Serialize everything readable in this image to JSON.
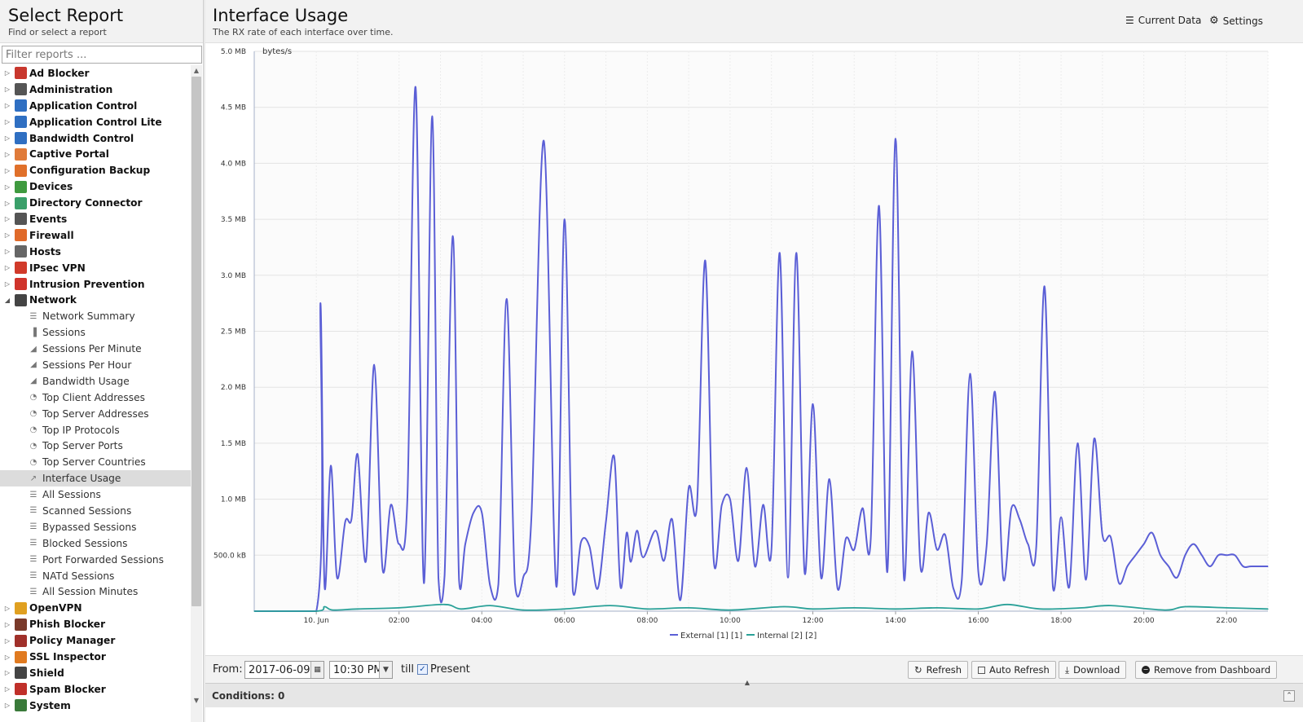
{
  "sidebar": {
    "title": "Select Report",
    "subtitle": "Find or select a report",
    "filter_placeholder": "Filter reports ...",
    "items": [
      {
        "label": "Ad Blocker",
        "icon": "ad-blocker-icon",
        "color": "#c8372d",
        "type": "category"
      },
      {
        "label": "Administration",
        "icon": "administration-icon",
        "color": "#555555",
        "type": "category"
      },
      {
        "label": "Application Control",
        "icon": "application-control-icon",
        "color": "#2f6fc2",
        "type": "category"
      },
      {
        "label": "Application Control Lite",
        "icon": "application-control-lite-icon",
        "color": "#2f6fc2",
        "type": "category"
      },
      {
        "label": "Bandwidth Control",
        "icon": "bandwidth-control-icon",
        "color": "#2f6fc2",
        "type": "category"
      },
      {
        "label": "Captive Portal",
        "icon": "captive-portal-icon",
        "color": "#e07b3a",
        "type": "category"
      },
      {
        "label": "Configuration Backup",
        "icon": "configuration-backup-icon",
        "color": "#e0702a",
        "type": "category"
      },
      {
        "label": "Devices",
        "icon": "devices-icon",
        "color": "#3f9a3f",
        "type": "category"
      },
      {
        "label": "Directory Connector",
        "icon": "directory-connector-icon",
        "color": "#3aa06a",
        "type": "category"
      },
      {
        "label": "Events",
        "icon": "events-icon",
        "color": "#555555",
        "type": "category"
      },
      {
        "label": "Firewall",
        "icon": "firewall-icon",
        "color": "#e06a2a",
        "type": "category"
      },
      {
        "label": "Hosts",
        "icon": "hosts-icon",
        "color": "#666666",
        "type": "category"
      },
      {
        "label": "IPsec VPN",
        "icon": "ipsec-vpn-icon",
        "color": "#d13a2a",
        "type": "category"
      },
      {
        "label": "Intrusion Prevention",
        "icon": "intrusion-prevention-icon",
        "color": "#d0342c",
        "type": "category"
      },
      {
        "label": "Network",
        "icon": "network-icon",
        "color": "#444444",
        "type": "category",
        "expanded": true
      },
      {
        "label": "Network Summary",
        "icon": "list-icon",
        "type": "report"
      },
      {
        "label": "Sessions",
        "icon": "bar-chart-icon",
        "type": "report"
      },
      {
        "label": "Sessions Per Minute",
        "icon": "area-chart-icon",
        "type": "report"
      },
      {
        "label": "Sessions Per Hour",
        "icon": "area-chart-icon",
        "type": "report"
      },
      {
        "label": "Bandwidth Usage",
        "icon": "area-chart-icon",
        "type": "report"
      },
      {
        "label": "Top Client Addresses",
        "icon": "pie-chart-icon",
        "type": "report"
      },
      {
        "label": "Top Server Addresses",
        "icon": "pie-chart-icon",
        "type": "report"
      },
      {
        "label": "Top IP Protocols",
        "icon": "pie-chart-icon",
        "type": "report"
      },
      {
        "label": "Top Server Ports",
        "icon": "pie-chart-icon",
        "type": "report"
      },
      {
        "label": "Top Server Countries",
        "icon": "pie-chart-icon",
        "type": "report"
      },
      {
        "label": "Interface Usage",
        "icon": "line-chart-icon",
        "type": "report",
        "selected": true
      },
      {
        "label": "All Sessions",
        "icon": "list-icon",
        "type": "report"
      },
      {
        "label": "Scanned Sessions",
        "icon": "list-icon",
        "type": "report"
      },
      {
        "label": "Bypassed Sessions",
        "icon": "list-icon",
        "type": "report"
      },
      {
        "label": "Blocked Sessions",
        "icon": "list-icon",
        "type": "report"
      },
      {
        "label": "Port Forwarded Sessions",
        "icon": "list-icon",
        "type": "report"
      },
      {
        "label": "NATd Sessions",
        "icon": "list-icon",
        "type": "report"
      },
      {
        "label": "All Session Minutes",
        "icon": "list-icon",
        "type": "report"
      },
      {
        "label": "OpenVPN",
        "icon": "openvpn-icon",
        "color": "#e0a020",
        "type": "category"
      },
      {
        "label": "Phish Blocker",
        "icon": "phish-blocker-icon",
        "color": "#7a3a2a",
        "type": "category"
      },
      {
        "label": "Policy Manager",
        "icon": "policy-manager-icon",
        "color": "#a0302a",
        "type": "category"
      },
      {
        "label": "SSL Inspector",
        "icon": "ssl-inspector-icon",
        "color": "#e07a20",
        "type": "category"
      },
      {
        "label": "Shield",
        "icon": "shield-icon",
        "color": "#444444",
        "type": "category"
      },
      {
        "label": "Spam Blocker",
        "icon": "spam-blocker-icon",
        "color": "#c0302a",
        "type": "category"
      },
      {
        "label": "System",
        "icon": "system-icon",
        "color": "#3a7a3a",
        "type": "category"
      }
    ]
  },
  "report": {
    "title": "Interface Usage",
    "subtitle": "The RX rate of each interface over time.",
    "current_data_label": "Current Data",
    "settings_label": "Settings"
  },
  "toolbar": {
    "from_label": "From:",
    "from_date": "2017-06-09",
    "from_time": "10:30 PM",
    "till_label": "till",
    "present_label": "Present",
    "present_checked": true,
    "refresh_label": "Refresh",
    "auto_refresh_label": "Auto Refresh",
    "download_label": "Download",
    "remove_label": "Remove from Dashboard"
  },
  "conditions": {
    "label": "Conditions: 0"
  },
  "chart_data": {
    "type": "line",
    "ylabel": "bytes/s",
    "ylim": [
      0,
      5.0
    ],
    "y_unit": "MB",
    "y_ticks": [
      "500.0 kB",
      "1.0 MB",
      "1.5 MB",
      "2.0 MB",
      "2.5 MB",
      "3.0 MB",
      "3.5 MB",
      "4.0 MB",
      "4.5 MB",
      "5.0 MB"
    ],
    "x_ticks": [
      "10. Jun",
      "02:00",
      "04:00",
      "06:00",
      "08:00",
      "10:00",
      "12:00",
      "14:00",
      "16:00",
      "18:00",
      "20:00",
      "22:00"
    ],
    "x_range_hours": [
      -1.5,
      23.0
    ],
    "grid": true,
    "legend_position": "bottom-center",
    "colors": {
      "External [1] [1]": "#5b5fd6",
      "Internal [2] [2]": "#2aa198"
    },
    "series": [
      {
        "name": "External [1] [1]",
        "x_hours": [
          -1.5,
          0.0,
          0.1,
          0.2,
          0.35,
          0.5,
          0.7,
          0.85,
          1.0,
          1.2,
          1.4,
          1.6,
          1.8,
          2.0,
          2.2,
          2.4,
          2.6,
          2.8,
          2.95,
          3.1,
          3.3,
          3.45,
          3.6,
          3.8,
          4.0,
          4.2,
          4.4,
          4.6,
          4.8,
          5.0,
          5.2,
          5.5,
          5.8,
          6.0,
          6.2,
          6.4,
          6.6,
          6.8,
          7.0,
          7.2,
          7.35,
          7.5,
          7.6,
          7.75,
          7.9,
          8.2,
          8.4,
          8.6,
          8.8,
          9.0,
          9.2,
          9.4,
          9.6,
          9.8,
          10.0,
          10.2,
          10.4,
          10.6,
          10.8,
          11.0,
          11.2,
          11.4,
          11.6,
          11.8,
          12.0,
          12.2,
          12.4,
          12.6,
          12.8,
          13.0,
          13.2,
          13.4,
          13.6,
          13.8,
          14.0,
          14.2,
          14.4,
          14.6,
          14.8,
          15.0,
          15.2,
          15.4,
          15.6,
          15.8,
          16.0,
          16.2,
          16.4,
          16.6,
          16.8,
          17.0,
          17.2,
          17.4,
          17.6,
          17.8,
          18.0,
          18.2,
          18.4,
          18.6,
          18.8,
          19.0,
          19.2,
          19.4,
          19.6,
          19.8,
          20.0,
          20.2,
          20.4,
          20.6,
          20.8,
          21.0,
          21.2,
          21.4,
          21.6,
          21.8,
          22.0,
          22.2,
          22.4,
          22.6,
          23.0
        ],
        "values_mb": [
          0.0,
          0.0,
          2.75,
          0.22,
          1.3,
          0.3,
          0.8,
          0.82,
          1.4,
          0.45,
          2.2,
          0.38,
          0.95,
          0.6,
          1.0,
          4.68,
          0.25,
          4.42,
          0.3,
          0.32,
          3.35,
          0.28,
          0.6,
          0.88,
          0.88,
          0.23,
          0.24,
          2.79,
          0.25,
          0.3,
          0.85,
          4.2,
          0.22,
          3.5,
          0.18,
          0.62,
          0.58,
          0.2,
          0.8,
          1.38,
          0.22,
          0.7,
          0.44,
          0.72,
          0.48,
          0.72,
          0.45,
          0.82,
          0.1,
          1.1,
          0.95,
          3.13,
          0.48,
          0.95,
          1.0,
          0.45,
          1.28,
          0.4,
          0.95,
          0.55,
          3.2,
          0.3,
          3.2,
          0.35,
          1.85,
          0.3,
          1.18,
          0.2,
          0.65,
          0.55,
          0.92,
          0.65,
          3.62,
          0.35,
          4.22,
          0.3,
          2.32,
          0.4,
          0.88,
          0.55,
          0.68,
          0.2,
          0.28,
          2.12,
          0.35,
          0.58,
          1.96,
          0.3,
          0.92,
          0.82,
          0.6,
          0.58,
          2.9,
          0.22,
          0.84,
          0.22,
          1.5,
          0.28,
          1.54,
          0.68,
          0.66,
          0.25,
          0.4,
          0.5,
          0.6,
          0.7,
          0.5,
          0.4,
          0.3,
          0.5,
          0.6,
          0.5,
          0.4,
          0.5,
          0.5,
          0.5,
          0.4,
          0.4,
          0.4
        ]
      },
      {
        "name": "Internal [2] [2]",
        "x_hours": [
          -1.5,
          0.0,
          0.2,
          0.4,
          1.0,
          2.0,
          3.1,
          3.5,
          4.2,
          5.0,
          6.0,
          7.1,
          8.0,
          9.0,
          10.0,
          11.3,
          12.0,
          13.0,
          14.0,
          15.0,
          16.0,
          16.7,
          17.5,
          18.5,
          19.2,
          20.5,
          21.0,
          22.0,
          23.0
        ],
        "values_mb": [
          0.0,
          0.0,
          0.04,
          0.01,
          0.02,
          0.03,
          0.06,
          0.02,
          0.05,
          0.01,
          0.02,
          0.05,
          0.02,
          0.03,
          0.01,
          0.04,
          0.02,
          0.03,
          0.02,
          0.03,
          0.02,
          0.06,
          0.02,
          0.03,
          0.05,
          0.01,
          0.04,
          0.03,
          0.02
        ]
      }
    ]
  }
}
